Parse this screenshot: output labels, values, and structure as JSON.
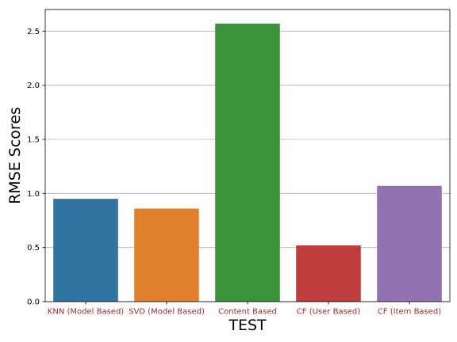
{
  "chart_data": {
    "type": "bar",
    "categories": [
      "KNN (Model Based)",
      "SVD (Model Based)",
      "Content Based",
      "CF (User Based)",
      "CF (Item Based)"
    ],
    "values": [
      0.95,
      0.86,
      2.57,
      0.52,
      1.07
    ],
    "colors": [
      "#3274a1",
      "#e1812c",
      "#3a923a",
      "#c03d3e",
      "#9372b2"
    ],
    "category_label_color": "#a52a2a",
    "xlabel": "TEST",
    "ylabel": "RMSE Scores",
    "ylim": [
      0,
      2.7
    ],
    "yticks": [
      "0.0",
      "0.5",
      "1.0",
      "1.5",
      "2.0",
      "2.5"
    ],
    "grid": "horizontal"
  }
}
